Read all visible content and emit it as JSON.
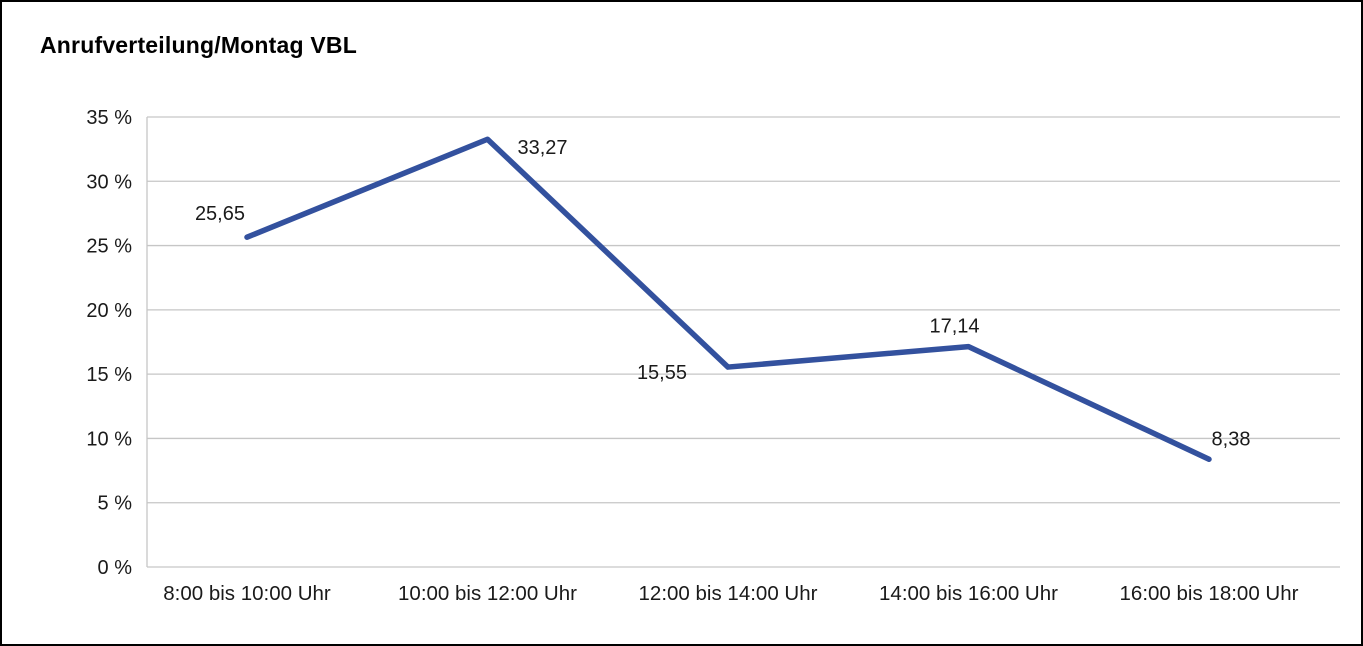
{
  "chart_data": {
    "type": "line",
    "title": "Anrufverteilung/Montag VBL",
    "categories": [
      "8:00 bis 10:00 Uhr",
      "10:00 bis 12:00 Uhr",
      "12:00 bis 14:00 Uhr",
      "14:00 bis 16:00 Uhr",
      "16:00 bis 18:00 Uhr"
    ],
    "series": [
      {
        "values": [
          25.65,
          33.27,
          15.55,
          17.14,
          8.38
        ]
      }
    ],
    "data_labels": [
      "25,65",
      "33,27",
      "15,55",
      "17,14",
      "8,38"
    ],
    "xlabel": "",
    "ylabel": "",
    "ylim": [
      0,
      35
    ],
    "ytick_step": 5,
    "ytick_labels": [
      "0 %",
      "5 %",
      "10 %",
      "15 %",
      "20 %",
      "25 %",
      "30 %",
      "35 %"
    ],
    "grid": true,
    "legend": "none",
    "line_color": "#33519e",
    "grid_color": "#c6c6c6",
    "text_color": "#1a1a1a",
    "background": "#ffffff",
    "border_color": "#000000"
  }
}
